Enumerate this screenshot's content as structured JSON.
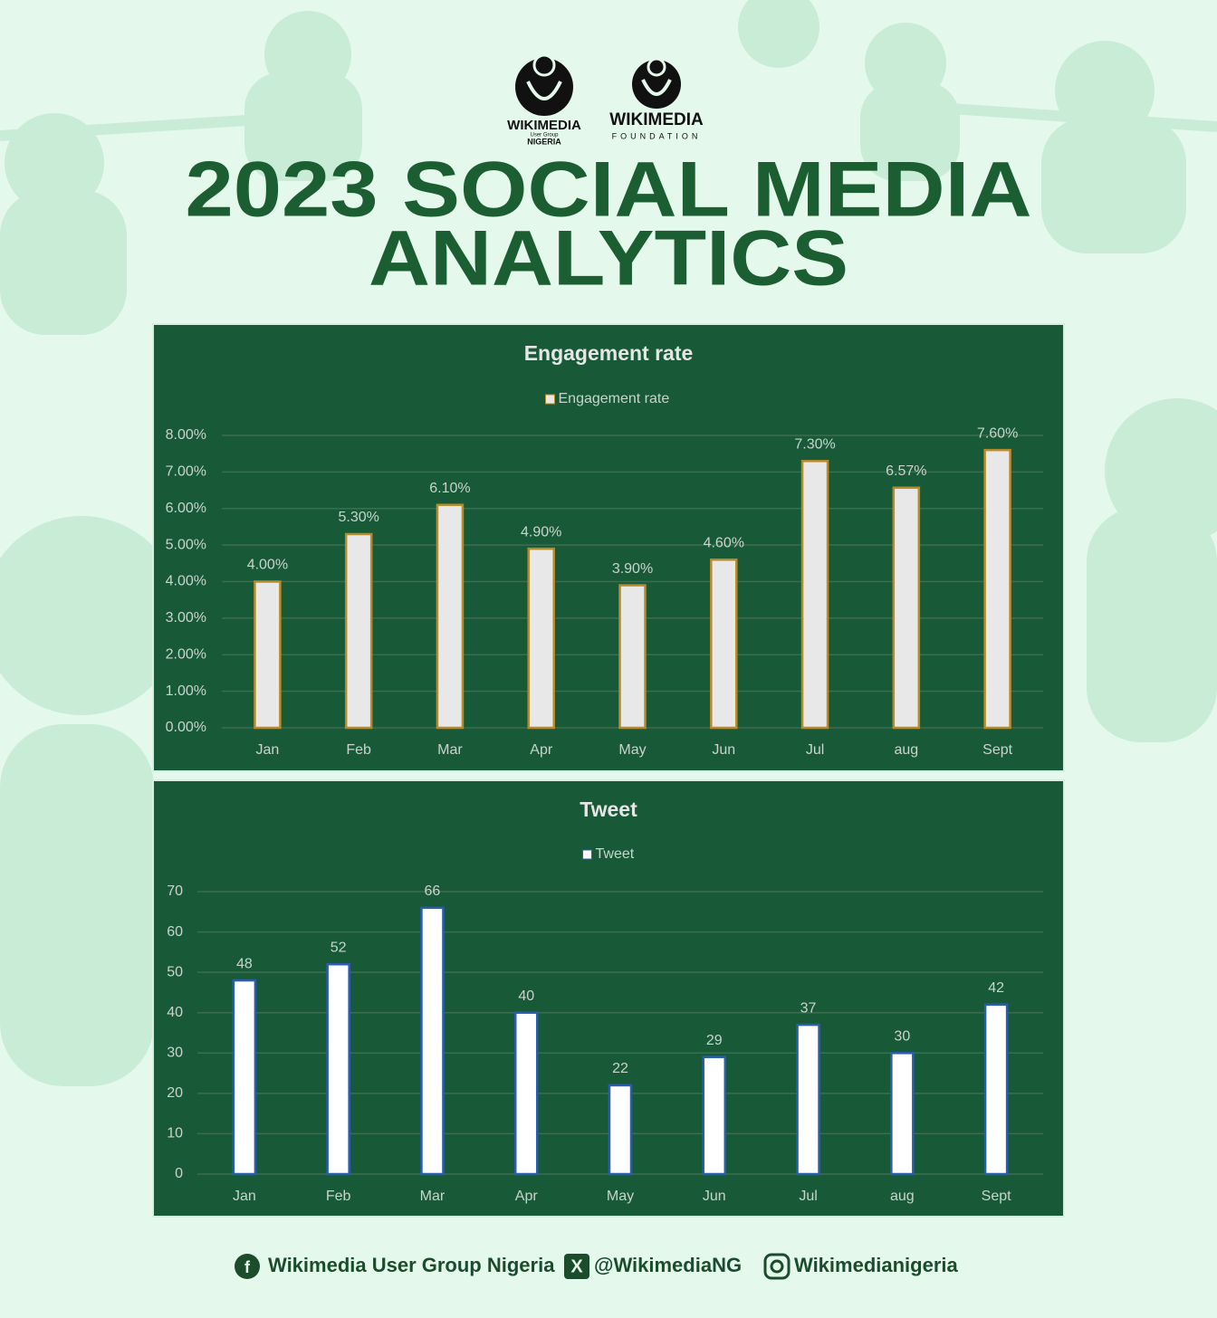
{
  "header": {
    "logo_left": {
      "name": "WIKIMEDIA",
      "sub": "User Group",
      "country": "NIGERIA"
    },
    "logo_right": {
      "name": "WIKIMEDIA",
      "sub": "FOUNDATION"
    },
    "title_lines": [
      "2023 SOCIAL MEDIA",
      "ANALYTICS"
    ]
  },
  "chart_data": [
    {
      "type": "bar",
      "title": "Engagement rate",
      "categories": [
        "Jan",
        "Feb",
        "Mar",
        "Apr",
        "May",
        "Jun",
        "Jul",
        "aug",
        "Sept"
      ],
      "series": [
        {
          "name": "Engagement rate",
          "color": "#e8e8e8",
          "values": [
            4.0,
            5.3,
            6.1,
            4.9,
            3.9,
            4.6,
            7.3,
            6.57,
            7.6
          ],
          "value_labels": [
            "4.00%",
            "5.30%",
            "6.10%",
            "4.90%",
            "3.90%",
            "4.60%",
            "7.30%",
            "6.57%",
            "7.60%"
          ]
        }
      ],
      "ylim": [
        0,
        8
      ],
      "yticks": [
        {
          "value": 0,
          "label": "0.00%"
        },
        {
          "value": 1,
          "label": "1.00%"
        },
        {
          "value": 2,
          "label": "2.00%"
        },
        {
          "value": 3,
          "label": "3.00%"
        },
        {
          "value": 4,
          "label": "4.00%"
        },
        {
          "value": 5,
          "label": "5.00%"
        },
        {
          "value": 6,
          "label": "6.00%"
        },
        {
          "value": 7,
          "label": "7.00%"
        },
        {
          "value": 8,
          "label": "8.00%"
        }
      ],
      "grid": true,
      "legend": "top"
    },
    {
      "type": "bar",
      "title": "Tweet",
      "categories": [
        "Jan",
        "Feb",
        "Mar",
        "Apr",
        "May",
        "Jun",
        "Jul",
        "aug",
        "Sept"
      ],
      "series": [
        {
          "name": "Tweet",
          "color": "#ffffff",
          "values": [
            48,
            52,
            66,
            40,
            22,
            29,
            37,
            30,
            42
          ]
        }
      ],
      "ylim": [
        0,
        70
      ],
      "yticks": [
        0,
        10,
        20,
        30,
        40,
        50,
        60,
        70
      ],
      "grid": true,
      "legend": "top"
    }
  ],
  "footer": {
    "facebook": "Wikimedia User Group Nigeria",
    "x": "@WikimediaNG",
    "instagram": "Wikimedianigeria"
  }
}
